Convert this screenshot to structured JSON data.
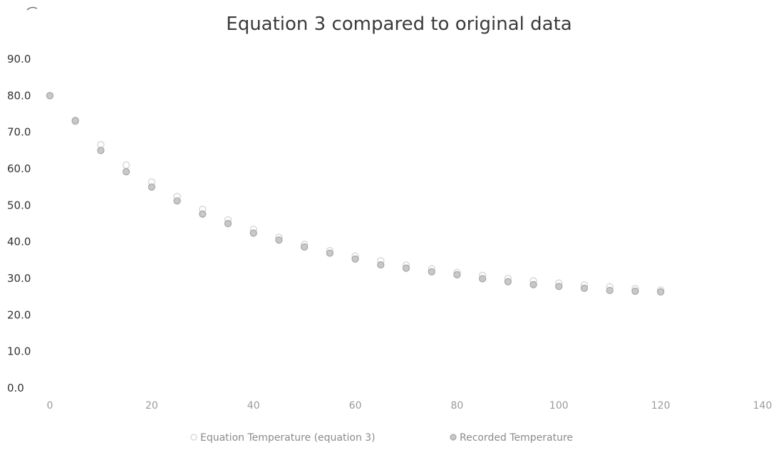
{
  "chart_data": {
    "type": "scatter",
    "title": "Equation 3 compared to original data",
    "xlabel": "",
    "ylabel": "",
    "xlim": [
      0,
      140
    ],
    "ylim": [
      0,
      90
    ],
    "x_ticks": [
      "0",
      "20",
      "40",
      "60",
      "80",
      "100",
      "120",
      "140"
    ],
    "y_ticks": [
      "0.0",
      "10.0",
      "20.0",
      "30.0",
      "40.0",
      "50.0",
      "60.0",
      "70.0",
      "80.0",
      "90.0"
    ],
    "grid": false,
    "legend_position": "bottom",
    "series": [
      {
        "name": "Equation Temperature (equation 3)",
        "color": "#d9d9d9",
        "x": [
          0,
          5,
          10,
          15,
          20,
          25,
          30,
          35,
          40,
          45,
          50,
          55,
          60,
          65,
          70,
          75,
          80,
          85,
          90,
          95,
          100,
          105,
          110,
          115,
          120
        ],
        "y": [
          80.0,
          72.9,
          66.6,
          61.0,
          56.4,
          52.4,
          48.9,
          46.0,
          43.4,
          41.2,
          39.3,
          37.6,
          36.1,
          34.8,
          33.6,
          32.6,
          31.6,
          30.8,
          30.0,
          29.3,
          28.7,
          28.2,
          27.7,
          27.2,
          26.8
        ]
      },
      {
        "name": "Recorded Temperature",
        "color": "#a6a6a6",
        "x": [
          0,
          5,
          10,
          15,
          20,
          25,
          30,
          35,
          40,
          45,
          50,
          55,
          60,
          65,
          70,
          75,
          80,
          85,
          90,
          95,
          100,
          105,
          110,
          115,
          120
        ],
        "y": [
          80.0,
          73.2,
          65.0,
          59.2,
          55.0,
          51.2,
          47.6,
          45.0,
          42.4,
          40.5,
          38.6,
          36.9,
          35.3,
          33.7,
          32.8,
          31.8,
          31.0,
          29.9,
          29.1,
          28.3,
          27.8,
          27.3,
          26.7,
          26.5,
          26.3
        ]
      }
    ]
  }
}
